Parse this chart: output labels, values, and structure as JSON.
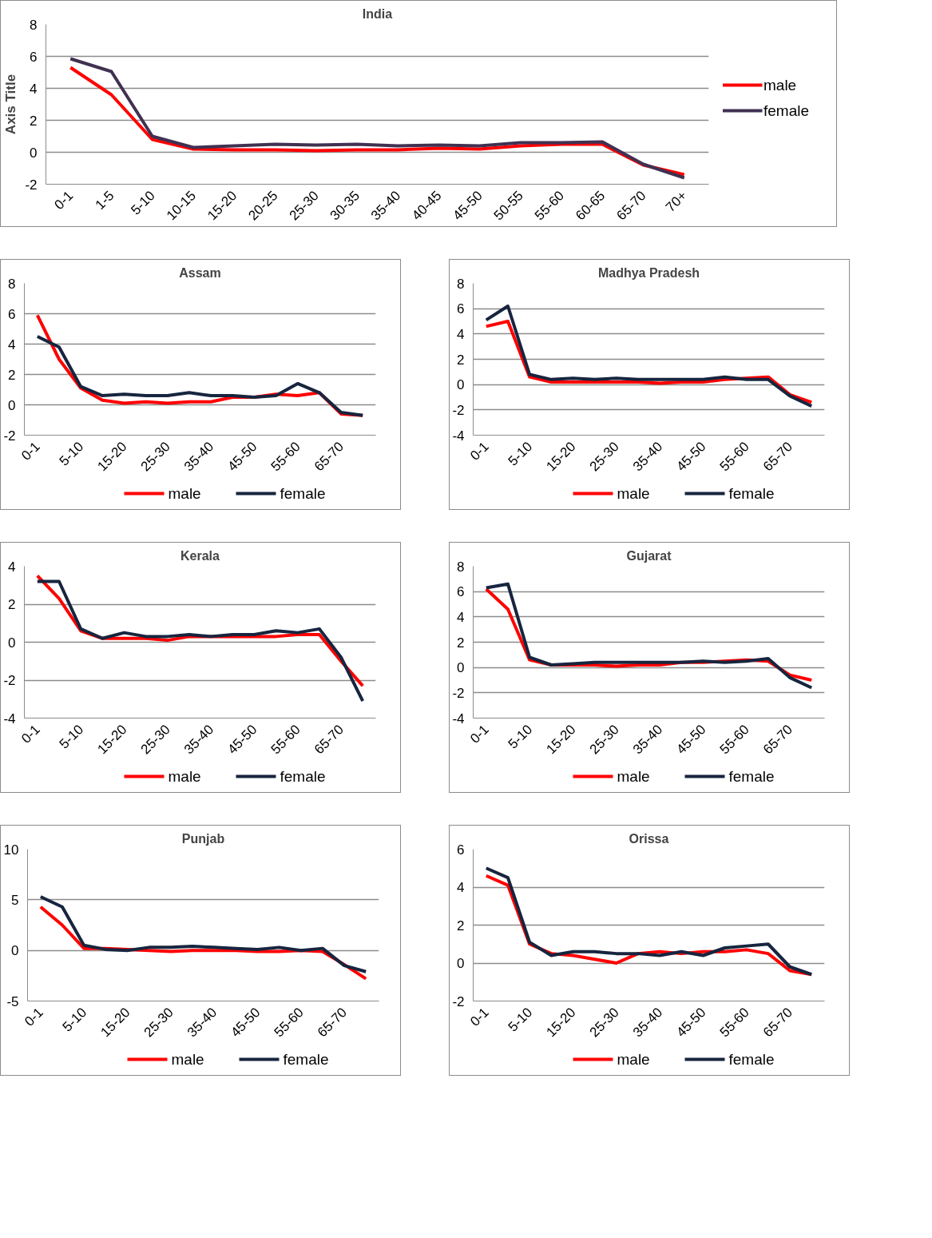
{
  "chart_data": [
    {
      "type": "line",
      "title": "India",
      "ylabel": "Axis Title",
      "categories": [
        "0-1",
        "1-5",
        "5-10",
        "10-15",
        "15-20",
        "20-25",
        "25-30",
        "30-35",
        "35-40",
        "40-45",
        "45-50",
        "50-55",
        "55-60",
        "60-65",
        "65-70",
        "70+"
      ],
      "ylim": [
        -2,
        8
      ],
      "yticks": [
        -2,
        0,
        2,
        4,
        6,
        8
      ],
      "grid": "y",
      "legend": "right",
      "series": [
        {
          "name": "male",
          "color": "#ff0000",
          "values": [
            5.3,
            3.6,
            0.8,
            0.2,
            0.15,
            0.15,
            0.1,
            0.15,
            0.15,
            0.25,
            0.2,
            0.4,
            0.5,
            0.5,
            -0.8,
            -1.4
          ]
        },
        {
          "name": "female",
          "color": "#403152",
          "values": [
            5.85,
            5.05,
            1.0,
            0.3,
            0.4,
            0.5,
            0.45,
            0.5,
            0.4,
            0.45,
            0.4,
            0.6,
            0.6,
            0.65,
            -0.75,
            -1.6
          ]
        }
      ]
    },
    {
      "type": "line",
      "title": "Assam",
      "categories": [
        "0-1",
        null,
        "5-10",
        null,
        "15-20",
        null,
        "25-30",
        null,
        "35-40",
        null,
        "45-50",
        null,
        "55-60",
        null,
        "65-70",
        null
      ],
      "ylim": [
        -2,
        8
      ],
      "yticks": [
        -2,
        0,
        2,
        4,
        6,
        8
      ],
      "grid": "y",
      "legend": "bottom",
      "series": [
        {
          "name": "male",
          "color": "#ff0000",
          "values": [
            5.9,
            3.0,
            1.1,
            0.3,
            0.1,
            0.2,
            0.1,
            0.2,
            0.2,
            0.5,
            0.5,
            0.7,
            0.6,
            0.8,
            -0.6,
            -0.7
          ]
        },
        {
          "name": "female",
          "color": "#17253f",
          "values": [
            4.5,
            3.8,
            1.2,
            0.6,
            0.7,
            0.6,
            0.6,
            0.8,
            0.6,
            0.6,
            0.5,
            0.6,
            1.4,
            0.8,
            -0.5,
            -0.7
          ]
        }
      ]
    },
    {
      "type": "line",
      "title": "Madhya Pradesh",
      "categories": [
        "0-1",
        null,
        "5-10",
        null,
        "15-20",
        null,
        "25-30",
        null,
        "35-40",
        null,
        "45-50",
        null,
        "55-60",
        null,
        "65-70",
        null
      ],
      "ylim": [
        -4,
        8
      ],
      "yticks": [
        -4,
        -2,
        0,
        2,
        4,
        6,
        8
      ],
      "grid": "y",
      "legend": "bottom",
      "series": [
        {
          "name": "male",
          "color": "#ff0000",
          "values": [
            4.6,
            5.0,
            0.6,
            0.2,
            0.2,
            0.2,
            0.2,
            0.2,
            0.1,
            0.2,
            0.2,
            0.4,
            0.5,
            0.6,
            -0.8,
            -1.4
          ]
        },
        {
          "name": "female",
          "color": "#17253f",
          "values": [
            5.1,
            6.2,
            0.8,
            0.4,
            0.5,
            0.4,
            0.5,
            0.4,
            0.4,
            0.4,
            0.4,
            0.6,
            0.4,
            0.4,
            -0.9,
            -1.7
          ]
        }
      ]
    },
    {
      "type": "line",
      "title": "Kerala",
      "categories": [
        "0-1",
        null,
        "5-10",
        null,
        "15-20",
        null,
        "25-30",
        null,
        "35-40",
        null,
        "45-50",
        null,
        "55-60",
        null,
        "65-70",
        null
      ],
      "ylim": [
        -4,
        4
      ],
      "yticks": [
        -4,
        -2,
        0,
        2,
        4
      ],
      "grid": "y",
      "legend": "bottom",
      "series": [
        {
          "name": "male",
          "color": "#ff0000",
          "values": [
            3.5,
            2.3,
            0.6,
            0.2,
            0.2,
            0.2,
            0.1,
            0.3,
            0.3,
            0.3,
            0.3,
            0.3,
            0.4,
            0.4,
            -1.0,
            -2.3
          ]
        },
        {
          "name": "female",
          "color": "#17253f",
          "values": [
            3.2,
            3.2,
            0.7,
            0.2,
            0.5,
            0.3,
            0.3,
            0.4,
            0.3,
            0.4,
            0.4,
            0.6,
            0.5,
            0.7,
            -0.8,
            -3.1
          ]
        }
      ]
    },
    {
      "type": "line",
      "title": "Gujarat",
      "categories": [
        "0-1",
        null,
        "5-10",
        null,
        "15-20",
        null,
        "25-30",
        null,
        "35-40",
        null,
        "45-50",
        null,
        "55-60",
        null,
        "65-70",
        null
      ],
      "ylim": [
        -4,
        8
      ],
      "yticks": [
        -4,
        -2,
        0,
        2,
        4,
        6,
        8
      ],
      "grid": "y",
      "legend": "bottom",
      "series": [
        {
          "name": "male",
          "color": "#ff0000",
          "values": [
            6.2,
            4.6,
            0.6,
            0.2,
            0.2,
            0.2,
            0.1,
            0.2,
            0.2,
            0.4,
            0.4,
            0.5,
            0.6,
            0.5,
            -0.6,
            -1.0
          ]
        },
        {
          "name": "female",
          "color": "#17253f",
          "values": [
            6.3,
            6.6,
            0.8,
            0.2,
            0.3,
            0.4,
            0.4,
            0.4,
            0.4,
            0.4,
            0.5,
            0.4,
            0.5,
            0.7,
            -0.8,
            -1.6
          ]
        }
      ]
    },
    {
      "type": "line",
      "title": "Punjab",
      "categories": [
        "0-1",
        null,
        "5-10",
        null,
        "15-20",
        null,
        "25-30",
        null,
        "35-40",
        null,
        "45-50",
        null,
        "55-60",
        null,
        "65-70",
        null
      ],
      "ylim": [
        -5,
        10
      ],
      "yticks": [
        -5,
        0,
        5,
        10
      ],
      "grid": "y",
      "legend": "bottom",
      "series": [
        {
          "name": "male",
          "color": "#ff0000",
          "values": [
            4.3,
            2.5,
            0.2,
            0.2,
            0.1,
            0.0,
            -0.1,
            0.0,
            0.0,
            0.0,
            -0.1,
            -0.1,
            0.0,
            -0.1,
            -1.4,
            -2.8
          ]
        },
        {
          "name": "female",
          "color": "#17253f",
          "values": [
            5.3,
            4.3,
            0.5,
            0.1,
            0.0,
            0.3,
            0.3,
            0.4,
            0.3,
            0.2,
            0.1,
            0.3,
            0.0,
            0.2,
            -1.5,
            -2.1
          ]
        }
      ]
    },
    {
      "type": "line",
      "title": "Orissa",
      "categories": [
        "0-1",
        null,
        "5-10",
        null,
        "15-20",
        null,
        "25-30",
        null,
        "35-40",
        null,
        "45-50",
        null,
        "55-60",
        null,
        "65-70",
        null
      ],
      "ylim": [
        -2,
        6
      ],
      "yticks": [
        -2,
        0,
        2,
        4,
        6
      ],
      "grid": "y",
      "legend": "bottom",
      "series": [
        {
          "name": "male",
          "color": "#ff0000",
          "values": [
            4.6,
            4.1,
            1.0,
            0.5,
            0.4,
            0.2,
            0.0,
            0.5,
            0.6,
            0.5,
            0.6,
            0.6,
            0.7,
            0.5,
            -0.4,
            -0.6
          ]
        },
        {
          "name": "female",
          "color": "#17253f",
          "values": [
            5.0,
            4.5,
            1.1,
            0.4,
            0.6,
            0.6,
            0.5,
            0.5,
            0.4,
            0.6,
            0.4,
            0.8,
            0.9,
            1.0,
            -0.2,
            -0.6
          ]
        }
      ]
    }
  ]
}
